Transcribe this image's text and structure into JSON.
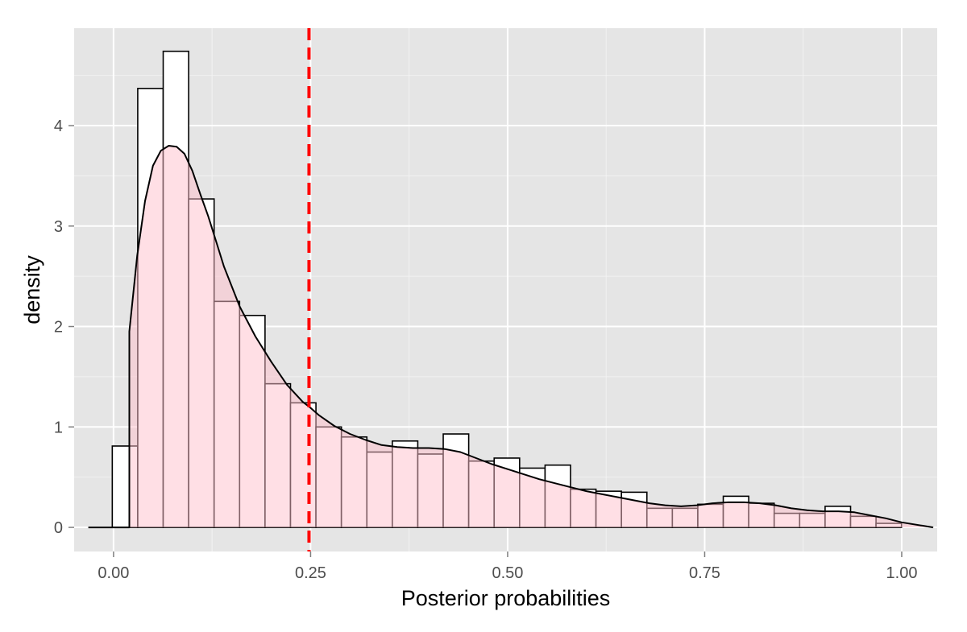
{
  "chart_data": {
    "type": "bar",
    "subtype": "histogram-with-density",
    "xlabel": "Posterior probabilities",
    "ylabel": "density",
    "xlim": [
      -0.05,
      1.045
    ],
    "ylim": [
      -0.24,
      4.97
    ],
    "x_ticks": [
      0.0,
      0.25,
      0.5,
      0.75,
      1.0
    ],
    "x_tick_labels": [
      "0.00",
      "0.25",
      "0.50",
      "0.75",
      "1.00"
    ],
    "x_minor_ticks": [
      0.125,
      0.375,
      0.625,
      0.875
    ],
    "y_ticks": [
      0,
      1,
      2,
      3,
      4
    ],
    "y_tick_labels": [
      "0",
      "1",
      "2",
      "3",
      "4"
    ],
    "y_minor_ticks": [
      0.5,
      1.5,
      2.5,
      3.5,
      4.5
    ],
    "grid": true,
    "histogram": {
      "bin_width": 0.0323,
      "bin_starts": [
        -0.0016,
        0.0307,
        0.063,
        0.0953,
        0.1276,
        0.1599,
        0.1922,
        0.2245,
        0.2568,
        0.2891,
        0.3214,
        0.3537,
        0.386,
        0.4183,
        0.4506,
        0.4829,
        0.5152,
        0.5475,
        0.5798,
        0.6121,
        0.6444,
        0.6767,
        0.709,
        0.7413,
        0.7736,
        0.8059,
        0.8382,
        0.8705,
        0.9028,
        0.9351,
        0.9674,
        0.9997
      ],
      "values": [
        0.81,
        4.37,
        4.74,
        3.27,
        2.25,
        2.11,
        1.43,
        1.24,
        1.0,
        0.9,
        0.75,
        0.86,
        0.73,
        0.93,
        0.66,
        0.69,
        0.59,
        0.62,
        0.38,
        0.36,
        0.35,
        0.19,
        0.19,
        0.23,
        0.31,
        0.24,
        0.14,
        0.14,
        0.21,
        0.11,
        0.04,
        0.0
      ]
    },
    "density": {
      "x": [
        -0.032,
        0.02,
        0.02,
        0.03,
        0.04,
        0.05,
        0.06,
        0.07,
        0.08,
        0.09,
        0.1,
        0.11,
        0.12,
        0.13,
        0.14,
        0.16,
        0.18,
        0.2,
        0.22,
        0.24,
        0.25,
        0.26,
        0.28,
        0.3,
        0.32,
        0.34,
        0.36,
        0.38,
        0.4,
        0.42,
        0.44,
        0.46,
        0.48,
        0.5,
        0.52,
        0.54,
        0.56,
        0.58,
        0.6,
        0.62,
        0.64,
        0.66,
        0.68,
        0.7,
        0.72,
        0.74,
        0.76,
        0.78,
        0.8,
        0.82,
        0.84,
        0.86,
        0.88,
        0.9,
        0.92,
        0.94,
        0.96,
        0.98,
        1.0,
        1.04
      ],
      "y": [
        0,
        0,
        1.95,
        2.7,
        3.25,
        3.6,
        3.75,
        3.8,
        3.79,
        3.72,
        3.55,
        3.32,
        3.1,
        2.85,
        2.6,
        2.2,
        1.9,
        1.65,
        1.42,
        1.25,
        1.19,
        1.12,
        1.01,
        0.93,
        0.87,
        0.82,
        0.8,
        0.79,
        0.79,
        0.78,
        0.75,
        0.69,
        0.63,
        0.58,
        0.53,
        0.48,
        0.44,
        0.4,
        0.36,
        0.33,
        0.3,
        0.27,
        0.24,
        0.22,
        0.21,
        0.22,
        0.24,
        0.25,
        0.25,
        0.24,
        0.22,
        0.19,
        0.17,
        0.16,
        0.16,
        0.15,
        0.12,
        0.09,
        0.05,
        0.0
      ],
      "fill": "#ffc0cb",
      "fill_opacity": 0.5
    },
    "vline": {
      "x": 0.248,
      "color": "#ff0000",
      "linetype": "dashed"
    },
    "colors": {
      "panel_background": "#e5e5e5",
      "grid_major": "#ffffff",
      "grid_minor": "#f2f2f2",
      "bar_fill": "#ffffff",
      "bar_outline": "#000000",
      "density_line": "#000000"
    }
  }
}
